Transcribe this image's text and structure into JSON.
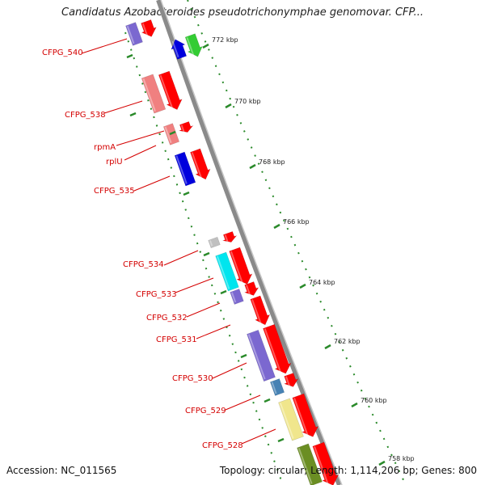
{
  "title": "Candidatus Azobacteroides pseudotrichonymphae genomovar. CFP...",
  "footer": {
    "accession": "Accession: NC_011565",
    "stats": "Topology: circular; Length: 1,114,206 bp; Genes: 800"
  },
  "colors": {
    "backbone": "#808080",
    "tick": "#2a8a2a",
    "label": "#d40000"
  },
  "ticks": [
    {
      "label": "772 kbp",
      "kbp": 772
    },
    {
      "label": "770 kbp",
      "kbp": 770
    },
    {
      "label": "768 kbp",
      "kbp": 768
    },
    {
      "label": "766 kbp",
      "kbp": 766
    },
    {
      "label": "764 kbp",
      "kbp": 764
    },
    {
      "label": "762 kbp",
      "kbp": 762
    },
    {
      "label": "760 kbp",
      "kbp": 760
    },
    {
      "label": "758 kbp",
      "kbp": 758
    }
  ],
  "gene_labels": [
    {
      "name": "CFPG_540"
    },
    {
      "name": "CFPG_538"
    },
    {
      "name": "rpmA"
    },
    {
      "name": "rplU"
    },
    {
      "name": "CFPG_535"
    },
    {
      "name": "CFPG_534"
    },
    {
      "name": "CFPG_533"
    },
    {
      "name": "CFPG_532"
    },
    {
      "name": "CFPG_531"
    },
    {
      "name": "CFPG_530"
    },
    {
      "name": "CFPG_529"
    },
    {
      "name": "CFPG_528"
    }
  ],
  "features": [
    {
      "color": "#7b68d0"
    },
    {
      "color": "#ff0000"
    },
    {
      "color": "#0000dd"
    },
    {
      "color": "#33cc33"
    },
    {
      "color": "#f08080"
    },
    {
      "color": "#ff0000"
    },
    {
      "color": "#f08080"
    },
    {
      "color": "#ff0000"
    },
    {
      "color": "#0000dd"
    },
    {
      "color": "#ff0000"
    },
    {
      "color": "#c0c0c0"
    },
    {
      "color": "#ff0000"
    },
    {
      "color": "#00e5ee"
    },
    {
      "color": "#ff0000"
    },
    {
      "color": "#7b68d0"
    },
    {
      "color": "#ff0000"
    },
    {
      "color": "#ff0000"
    },
    {
      "color": "#7b68d0"
    },
    {
      "color": "#ff0000"
    },
    {
      "color": "#4682b4"
    },
    {
      "color": "#ff0000"
    },
    {
      "color": "#f0e68c"
    },
    {
      "color": "#ff0000"
    },
    {
      "color": "#6b8e23"
    },
    {
      "color": "#ff0000"
    }
  ]
}
